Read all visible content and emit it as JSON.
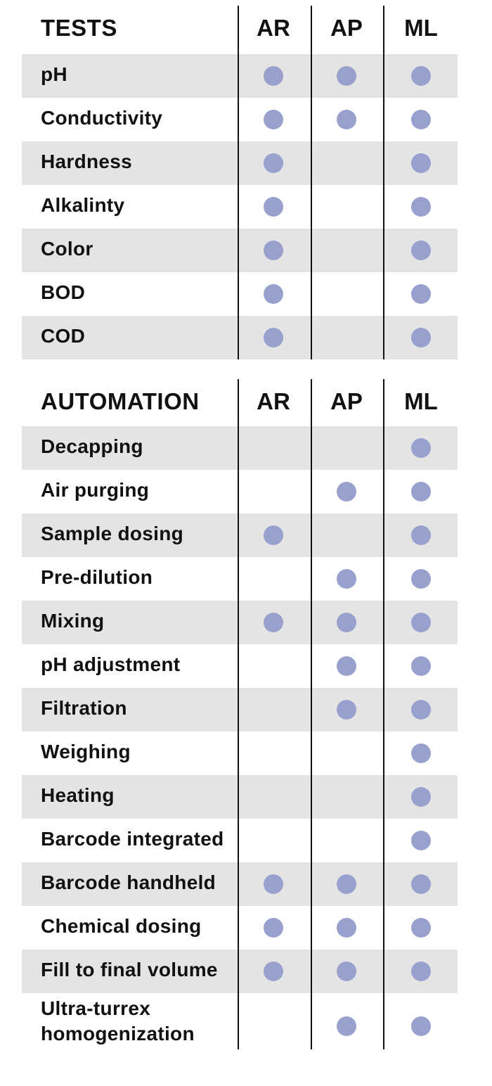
{
  "tests": {
    "title": "TESTS",
    "columns": [
      "AR",
      "AP",
      "ML"
    ],
    "rows": [
      {
        "label": "pH",
        "AR": true,
        "AP": true,
        "ML": true
      },
      {
        "label": "Conductivity",
        "AR": true,
        "AP": true,
        "ML": true
      },
      {
        "label": "Hardness",
        "AR": true,
        "AP": false,
        "ML": true
      },
      {
        "label": "Alkalinty",
        "AR": true,
        "AP": false,
        "ML": true
      },
      {
        "label": "Color",
        "AR": true,
        "AP": false,
        "ML": true
      },
      {
        "label": "BOD",
        "AR": true,
        "AP": false,
        "ML": true
      },
      {
        "label": "COD",
        "AR": true,
        "AP": false,
        "ML": true
      }
    ]
  },
  "automation": {
    "title": "AUTOMATION",
    "columns": [
      "AR",
      "AP",
      "ML"
    ],
    "rows": [
      {
        "label": "Decapping",
        "AR": false,
        "AP": false,
        "ML": true
      },
      {
        "label": "Air purging",
        "AR": false,
        "AP": true,
        "ML": true
      },
      {
        "label": "Sample dosing",
        "AR": true,
        "AP": false,
        "ML": true
      },
      {
        "label": "Pre-dilution",
        "AR": false,
        "AP": true,
        "ML": true
      },
      {
        "label": "Mixing",
        "AR": true,
        "AP": true,
        "ML": true
      },
      {
        "label": "pH adjustment",
        "AR": false,
        "AP": true,
        "ML": true
      },
      {
        "label": "Filtration",
        "AR": false,
        "AP": true,
        "ML": true
      },
      {
        "label": "Weighing",
        "AR": false,
        "AP": false,
        "ML": true
      },
      {
        "label": "Heating",
        "AR": false,
        "AP": false,
        "ML": true
      },
      {
        "label": "Barcode integrated",
        "AR": false,
        "AP": false,
        "ML": true
      },
      {
        "label": "Barcode handheld",
        "AR": true,
        "AP": true,
        "ML": true
      },
      {
        "label": "Chemical dosing",
        "AR": true,
        "AP": true,
        "ML": true
      },
      {
        "label": "Fill to final volume",
        "AR": true,
        "AP": true,
        "ML": true
      },
      {
        "label": "Ultra-turrex homogenization",
        "label_lines": [
          "Ultra-turrex",
          "homogenization"
        ],
        "AR": false,
        "AP": true,
        "ML": true
      }
    ]
  },
  "colors": {
    "dot": "#98a1cd",
    "shaded_row": "#e4e4e4",
    "text": "#111111"
  }
}
